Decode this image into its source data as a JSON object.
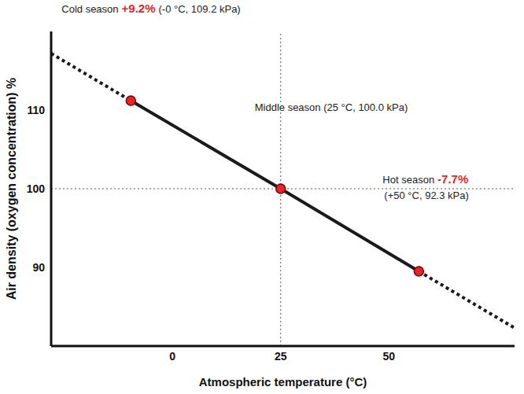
{
  "chart_data": {
    "type": "line",
    "x": [
      -28,
      -9.6,
      25,
      56.9,
      79
    ],
    "series": [
      {
        "values": [
          null,
          111.2,
          100,
          89.5,
          null
        ],
        "color": "#1a1a1a",
        "line_style": "solid",
        "marker": "circle"
      },
      {
        "values": [
          117.2,
          111.2,
          null,
          89.5,
          82.3
        ],
        "color": "#1a1a1a",
        "line_style": "dotted",
        "marker": "none"
      }
    ],
    "xlabel": "Atmospheric temperature (°C)",
    "ylabel": "Air density (oxygen concentration) %",
    "xlim": [
      -28,
      79
    ],
    "ylim": [
      80,
      120
    ],
    "xticks": [
      0,
      25,
      50
    ],
    "yticks": [
      90,
      100,
      110
    ],
    "grid": false,
    "reference_x": 25,
    "reference_y": 100,
    "annotations": [
      {
        "text": "Cold season",
        "highlight": "+9.2%",
        "detail": "(-0 °C, 109.2 kPa)"
      },
      {
        "text": "Middle season (25 °C, 100.0 kPa)"
      },
      {
        "text": "Hot season",
        "highlight": "-7.7%",
        "detail": "(+50 °C, 92.3 kPa)"
      }
    ]
  }
}
